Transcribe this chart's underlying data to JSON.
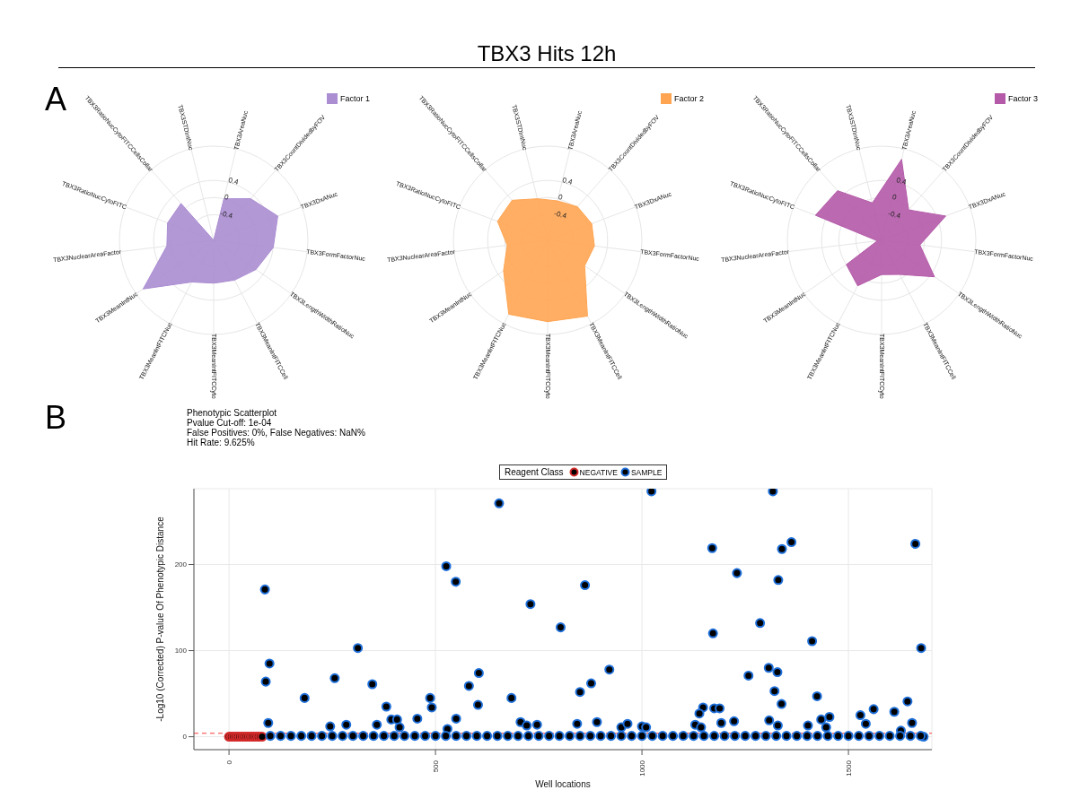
{
  "chart_data": [
    {
      "type": "other",
      "title": "TBX3 Hits 12h"
    },
    {
      "type": "radar",
      "annotations": [
        "A"
      ],
      "categories": [
        "TBX3AreaNuc",
        "TBX3CountDividedbyFOV",
        "TBX3DxANuc",
        "TBX3FormFactorNuc",
        "TBX3LengthWidthRatioNuc",
        "TBX3MeanIntFITCCell",
        "TBX3MeanIntFITCCyto",
        "TBX3MeanIntFITCNuc",
        "TBX3MeanIntNuc",
        "TBX3NuclearAreaFactor",
        "TBX3RatioNucCytoFITC",
        "TBX3RatioNucCytoFITCCellsCollar",
        "TBX3STDIntNuc"
      ],
      "series": [
        {
          "name": "Factor 1",
          "color": "#ab8dd2",
          "values": [
            0,
            0.3,
            0.6,
            0.4,
            0.2,
            0.05,
            0,
            0.1,
            1,
            0.1,
            0.15,
            0.15,
            -1
          ]
        }
      ],
      "ylim": [
        -1,
        1.2
      ],
      "yticks": [
        -0.4,
        0,
        0.4
      ],
      "grid": true,
      "legend": "top right"
    },
    {
      "type": "radar",
      "categories": [
        "TBX3AreaNuc",
        "TBX3CountDividedbyFOV",
        "TBX3DxANuc",
        "TBX3FormFactorNuc",
        "TBX3LengthWidthRatioNuc",
        "TBX3MeanIntFITCCell",
        "TBX3MeanIntFITCCyto",
        "TBX3MeanIntFITCNuc",
        "TBX3MeanIntNuc",
        "TBX3NuclearAreaFactor",
        "TBX3RatioNucCytoFITC",
        "TBX3RatioNucCytoFITCCellsCollar",
        "TBX3STDIntNuc"
      ],
      "series": [
        {
          "name": "Factor 2",
          "color": "#ffa552",
          "values": [
            -0.05,
            0.05,
            0.1,
            0.1,
            0.05,
            1,
            0.9,
            0.95,
            0.25,
            -0.05,
            0.25,
            0.25,
            0
          ]
        }
      ],
      "ylim": [
        -1,
        1.2
      ],
      "yticks": [
        -0.4,
        0,
        0.4
      ],
      "grid": true,
      "legend": "top right"
    },
    {
      "type": "radar",
      "categories": [
        "TBX3AreaNuc",
        "TBX3CountDividedbyFOV",
        "TBX3DxANuc",
        "TBX3FormFactorNuc",
        "TBX3LengthWidthRatioNuc",
        "TBX3MeanIntFITCCell",
        "TBX3MeanIntFITCCyto",
        "TBX3MeanIntFITCNuc",
        "TBX3MeanIntNuc",
        "TBX3NuclearAreaFactor",
        "TBX3RatioNucCytoFITC",
        "TBX3RatioNucCytoFITCCellsCollar",
        "TBX3STDIntNuc"
      ],
      "series": [
        {
          "name": "Factor 3",
          "color": "#b45aa8",
          "values": [
            0.95,
            -0.05,
            0.6,
            -0.1,
            0.5,
            -0.1,
            -0.2,
            0.2,
            0,
            -0.9,
            0.65,
            0.55,
            -0.1
          ]
        }
      ],
      "ylim": [
        -1,
        1.2
      ],
      "yticks": [
        -0.4,
        0,
        0.4
      ],
      "grid": true,
      "legend": "top right"
    },
    {
      "type": "scatter",
      "title": "Phenotypic Scatterplot",
      "annotations": [
        "B",
        "Pvalue Cut-off: 1e-04",
        "False Positives: 0%, False Negatives: NaN%",
        "Hit Rate: 9.625%"
      ],
      "xlabel": "Well locations",
      "ylabel": "-Log10 (Corrected) P-value Of Phenotypic Distance",
      "legend_title": "Reagent Class",
      "legend": "top right",
      "marker": "circle",
      "grid": true,
      "xlim": [
        -85,
        1702
      ],
      "xticks": [
        0,
        500,
        1000,
        1500
      ],
      "ylim": [
        -15,
        288
      ],
      "yticks": [
        0,
        100,
        200
      ],
      "ref_lines": [
        {
          "axis": "y",
          "value": 4,
          "color": "#ff3b3b",
          "line_style": "dashed"
        }
      ],
      "series": [
        {
          "name": "NEGATIVE",
          "color": "#d42a2a",
          "x": [
            0,
            5,
            10,
            15,
            20,
            25,
            30,
            35,
            40,
            45,
            50,
            55,
            60,
            65,
            70,
            75,
            80
          ],
          "values": [
            0,
            0,
            0,
            0,
            0,
            0,
            0,
            0,
            0,
            0,
            0,
            0,
            0,
            0,
            0,
            0,
            0
          ]
        },
        {
          "name": "SAMPLE",
          "color": "#1e6fd9",
          "x": [
            87,
            98,
            89,
            95,
            183,
            245,
            256,
            284,
            312,
            347,
            358,
            381,
            393,
            407,
            413,
            456,
            487,
            491,
            526,
            529,
            549,
            550,
            581,
            605,
            603,
            654,
            684,
            706,
            721,
            730,
            746,
            803,
            843,
            850,
            862,
            877,
            891,
            921,
            950,
            965,
            1000,
            1010,
            1023,
            1317,
            1170,
            1339,
            1362,
            1662,
            1230,
            1330,
            1286,
            1172,
            1412,
            1676,
            1258,
            1307,
            1328,
            1321,
            1424,
            1338,
            1148,
            1175,
            1188,
            1139,
            1129,
            1143,
            1192,
            1223,
            1308,
            1329,
            1402,
            1434,
            1446,
            1454,
            1529,
            1542,
            1561,
            1611,
            1643,
            1654,
            1627,
            1682,
            100,
            125,
            150,
            175,
            200,
            225,
            250,
            275,
            300,
            325,
            350,
            375,
            400,
            425,
            450,
            475,
            500,
            525,
            550,
            575,
            600,
            625,
            650,
            675,
            700,
            725,
            750,
            775,
            800,
            825,
            850,
            875,
            900,
            925,
            950,
            975,
            1000,
            1025,
            1050,
            1075,
            1100,
            1125,
            1150,
            1175,
            1200,
            1225,
            1250,
            1275,
            1300,
            1325,
            1350,
            1375,
            1400,
            1425,
            1450,
            1475,
            1500,
            1525,
            1550,
            1575,
            1600,
            1625,
            1650,
            1675
          ],
          "values": [
            171,
            85,
            64,
            16,
            45,
            12,
            68,
            14,
            103,
            61,
            14,
            35,
            20,
            20,
            11,
            21,
            45,
            34,
            198,
            9,
            180,
            21,
            59,
            74,
            37,
            271,
            45,
            17,
            13,
            154,
            14,
            127,
            15,
            52,
            176,
            62,
            17,
            78,
            11,
            15,
            12,
            11,
            285,
            285,
            219,
            218,
            226,
            224,
            190,
            182,
            132,
            120,
            111,
            103,
            71,
            80,
            75,
            53,
            47,
            38,
            34,
            33,
            33,
            27,
            14,
            11,
            16,
            18,
            19,
            13,
            13,
            20,
            11,
            23,
            25,
            15,
            32,
            29,
            41,
            16,
            7,
            0,
            1,
            1,
            1,
            1,
            1,
            1,
            1,
            1,
            1,
            1,
            1,
            1,
            1,
            1,
            1,
            1,
            1,
            1,
            1,
            1,
            1,
            1,
            1,
            1,
            1,
            1,
            1,
            1,
            1,
            1,
            1,
            1,
            1,
            1,
            1,
            1,
            1,
            1,
            1,
            1,
            1,
            1,
            1,
            1,
            1,
            1,
            1,
            1,
            1,
            1,
            1,
            1,
            1,
            1,
            1,
            1,
            1,
            1,
            1,
            1,
            1,
            1,
            1,
            1
          ]
        }
      ]
    }
  ]
}
